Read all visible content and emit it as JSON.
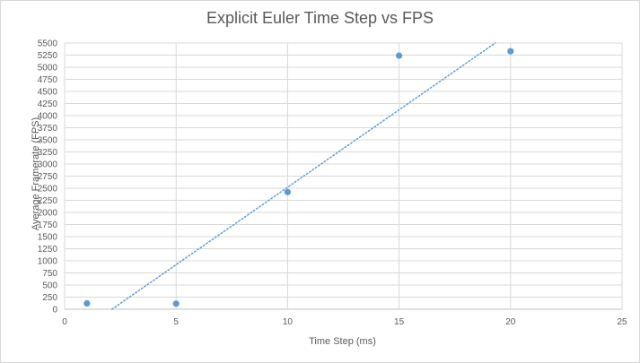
{
  "chart_data": {
    "type": "scatter",
    "title": "Explicit Euler Time Step vs FPS",
    "xlabel": "Time Step (ms)",
    "ylabel": "Average Framerate  (FPS)",
    "xlim": [
      0,
      25
    ],
    "ylim": [
      0,
      5500
    ],
    "x_ticks": [
      0,
      5,
      10,
      15,
      20,
      25
    ],
    "y_ticks": [
      0,
      250,
      500,
      750,
      1000,
      1250,
      1500,
      1750,
      2000,
      2250,
      2500,
      2750,
      3000,
      3250,
      3500,
      3750,
      4000,
      4250,
      4500,
      4750,
      5000,
      5250,
      5500
    ],
    "grid": true,
    "legend": "none",
    "series": [
      {
        "x": [
          1,
          5,
          10,
          15,
          20
        ],
        "y": [
          120,
          115,
          2420,
          5240,
          5330
        ],
        "color": "#5b9bd5"
      }
    ],
    "trendline": {
      "type": "linear",
      "slope": 320,
      "intercept": -680,
      "style": "dotted",
      "color": "#5b9bd5"
    }
  }
}
